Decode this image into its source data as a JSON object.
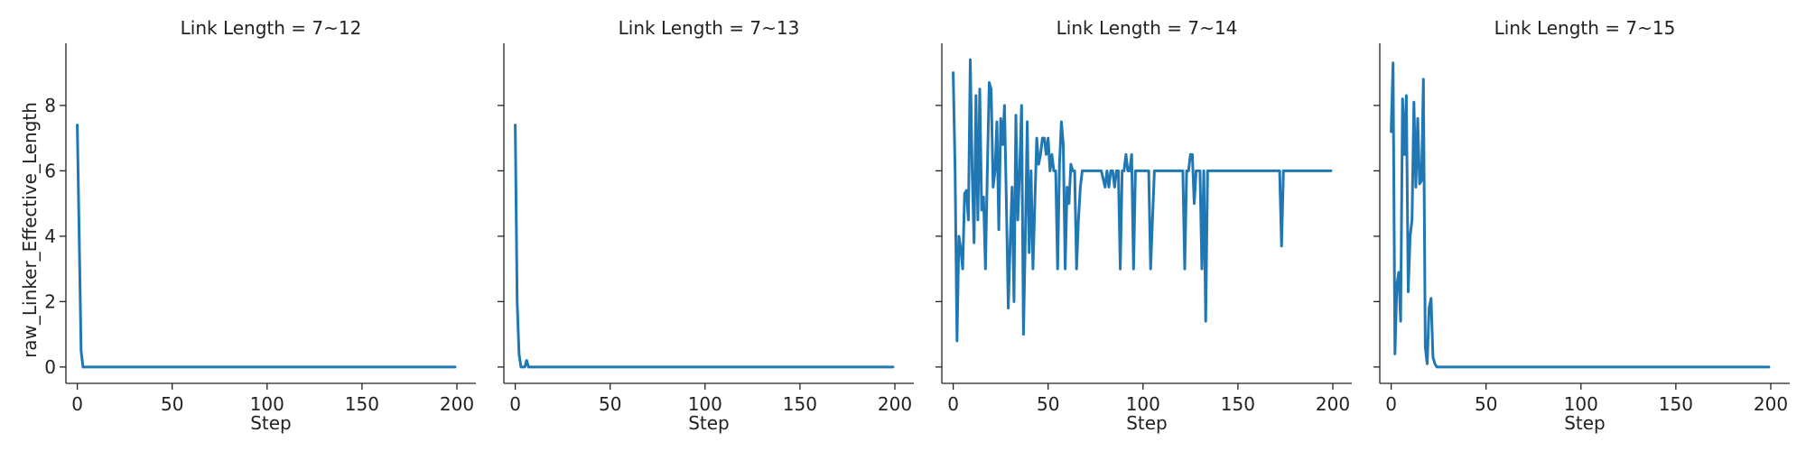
{
  "chart_data": [
    {
      "type": "line",
      "title": "Link Length = 7~12",
      "xlabel": "Step",
      "ylabel": "raw_Linker_Effective_Length",
      "xlim": [
        -6,
        210
      ],
      "ylim": [
        -0.5,
        9.9
      ],
      "xticks": [
        0,
        50,
        100,
        150,
        200
      ],
      "yticks": [
        0,
        2,
        4,
        6,
        8
      ],
      "grid": false,
      "color": "#1f77b4",
      "x": [
        0,
        1,
        2,
        3,
        4,
        5,
        10,
        50,
        100,
        150,
        199
      ],
      "y": [
        7.4,
        4.0,
        0.5,
        0.0,
        0.0,
        0.0,
        0.0,
        0.0,
        0.0,
        0.0,
        0.0
      ]
    },
    {
      "type": "line",
      "title": "Link Length = 7~13",
      "xlabel": "Step",
      "ylabel": "",
      "xlim": [
        -6,
        210
      ],
      "ylim": [
        -0.5,
        9.9
      ],
      "xticks": [
        0,
        50,
        100,
        150,
        200
      ],
      "yticks": [
        0,
        2,
        4,
        6,
        8
      ],
      "grid": false,
      "color": "#1f77b4",
      "x": [
        0,
        1,
        2,
        3,
        4,
        5,
        6,
        7,
        8,
        10,
        50,
        100,
        150,
        199
      ],
      "y": [
        7.4,
        2.0,
        0.4,
        0.0,
        0.0,
        0.0,
        0.2,
        0.0,
        0.0,
        0.0,
        0.0,
        0.0,
        0.0,
        0.0
      ]
    },
    {
      "type": "line",
      "title": "Link Length = 7~14",
      "xlabel": "Step",
      "ylabel": "",
      "xlim": [
        -6,
        210
      ],
      "ylim": [
        -0.5,
        9.9
      ],
      "xticks": [
        0,
        50,
        100,
        150,
        200
      ],
      "yticks": [
        0,
        2,
        4,
        6,
        8
      ],
      "grid": false,
      "color": "#1f77b4",
      "x": [
        0,
        1,
        2,
        3,
        4,
        5,
        6,
        7,
        8,
        9,
        10,
        11,
        12,
        13,
        14,
        15,
        16,
        17,
        18,
        19,
        20,
        21,
        22,
        23,
        24,
        25,
        26,
        27,
        28,
        29,
        30,
        31,
        32,
        33,
        34,
        35,
        36,
        37,
        38,
        39,
        40,
        41,
        42,
        43,
        44,
        45,
        46,
        47,
        48,
        49,
        50,
        51,
        52,
        53,
        54,
        55,
        56,
        57,
        58,
        59,
        60,
        61,
        62,
        63,
        64,
        65,
        66,
        67,
        68,
        69,
        70,
        72,
        74,
        76,
        78,
        80,
        81,
        82,
        83,
        84,
        85,
        86,
        87,
        88,
        89,
        90,
        91,
        92,
        93,
        94,
        95,
        96,
        98,
        100,
        101,
        102,
        103,
        104,
        106,
        108,
        110,
        112,
        114,
        116,
        118,
        120,
        121,
        122,
        123,
        124,
        125,
        126,
        127,
        128,
        129,
        130,
        131,
        132,
        133,
        134,
        136,
        140,
        150,
        160,
        170,
        171,
        172,
        173,
        174,
        180,
        190,
        199
      ],
      "y": [
        9.0,
        6.0,
        0.8,
        4.0,
        3.6,
        3.0,
        5.3,
        5.4,
        4.5,
        9.4,
        6.0,
        3.8,
        8.3,
        4.5,
        8.5,
        4.8,
        5.2,
        3.0,
        6.0,
        8.7,
        8.5,
        5.5,
        6.0,
        7.5,
        4.2,
        7.6,
        6.8,
        8.0,
        5.0,
        1.8,
        3.8,
        5.5,
        2.0,
        7.7,
        4.5,
        6.0,
        8.0,
        1.0,
        4.0,
        7.5,
        3.5,
        6.0,
        3.0,
        5.0,
        7.0,
        6.2,
        6.5,
        7.0,
        7.0,
        6.5,
        7.0,
        6.0,
        6.5,
        6.0,
        6.0,
        3.0,
        6.2,
        7.5,
        6.8,
        3.0,
        5.5,
        5.0,
        6.2,
        6.0,
        6.0,
        3.0,
        4.5,
        5.5,
        6.0,
        6.0,
        6.0,
        6.0,
        6.0,
        6.0,
        6.0,
        5.5,
        6.0,
        5.5,
        6.0,
        6.0,
        5.5,
        6.0,
        6.0,
        3.0,
        6.0,
        6.0,
        6.5,
        6.0,
        6.0,
        6.5,
        3.0,
        6.0,
        6.0,
        6.0,
        6.0,
        6.0,
        6.0,
        3.0,
        6.0,
        6.0,
        6.0,
        6.0,
        6.0,
        6.0,
        6.0,
        6.0,
        6.0,
        3.0,
        6.0,
        6.0,
        6.5,
        6.5,
        5.0,
        6.0,
        6.0,
        6.0,
        3.0,
        6.0,
        1.4,
        6.0,
        6.0,
        6.0,
        6.0,
        6.0,
        6.0,
        6.0,
        6.0,
        3.7,
        6.0,
        6.0,
        6.0,
        6.0
      ]
    },
    {
      "type": "line",
      "title": "Link Length = 7~15",
      "xlabel": "Step",
      "ylabel": "",
      "xlim": [
        -6,
        210
      ],
      "ylim": [
        -0.5,
        9.9
      ],
      "xticks": [
        0,
        50,
        100,
        150,
        200
      ],
      "yticks": [
        0,
        2,
        4,
        6,
        8
      ],
      "grid": false,
      "color": "#1f77b4",
      "x": [
        0,
        1,
        2,
        3,
        4,
        5,
        6,
        7,
        8,
        9,
        10,
        11,
        12,
        13,
        14,
        15,
        16,
        17,
        18,
        19,
        20,
        21,
        22,
        23,
        24,
        25,
        26,
        30,
        50,
        100,
        150,
        199
      ],
      "y": [
        7.2,
        9.3,
        0.4,
        2.5,
        2.9,
        1.4,
        8.2,
        6.5,
        8.3,
        2.3,
        4.0,
        4.5,
        8.1,
        5.5,
        7.6,
        5.6,
        5.7,
        8.8,
        0.6,
        0.1,
        1.8,
        2.1,
        0.3,
        0.1,
        0.0,
        0.0,
        0.0,
        0.0,
        0.0,
        0.0,
        0.0,
        0.0
      ]
    }
  ]
}
